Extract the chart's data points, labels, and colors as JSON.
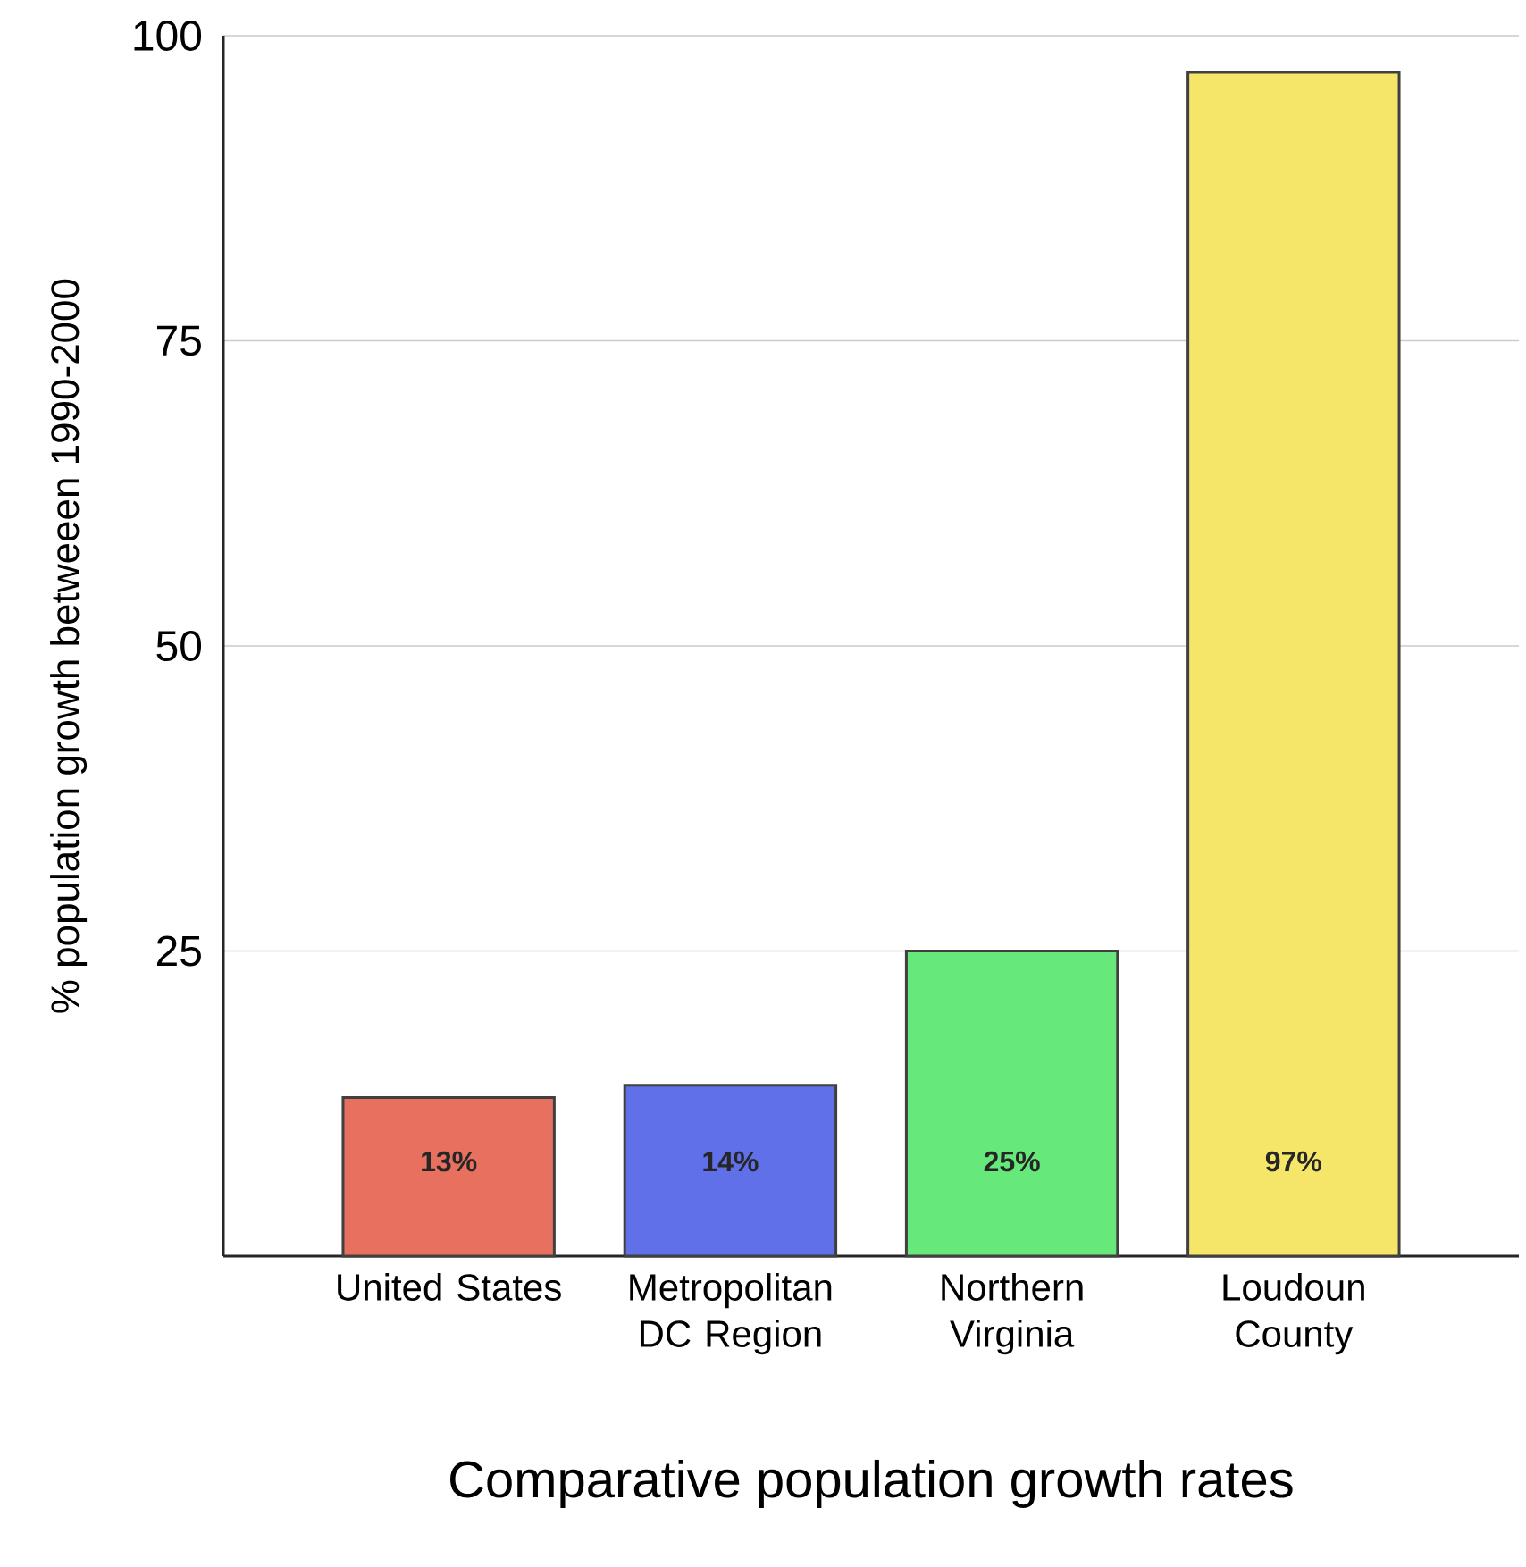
{
  "chart_data": {
    "type": "bar",
    "xlabel": "Comparative population growth rates",
    "ylabel": "% population growth betweeen 1990-2000",
    "categories": [
      "United States",
      "Metropolitan DC Region",
      "Northern Virginia",
      "Loudoun County"
    ],
    "values": [
      13,
      14,
      25,
      97
    ],
    "value_labels": [
      "13%",
      "14%",
      "25%",
      "97%"
    ],
    "colors": [
      "#e8705f",
      "#6070e8",
      "#66e87a",
      "#f5e66a"
    ],
    "ylim": [
      0,
      100
    ],
    "yticks": [
      25,
      50,
      75,
      100
    ],
    "grid": "y"
  }
}
